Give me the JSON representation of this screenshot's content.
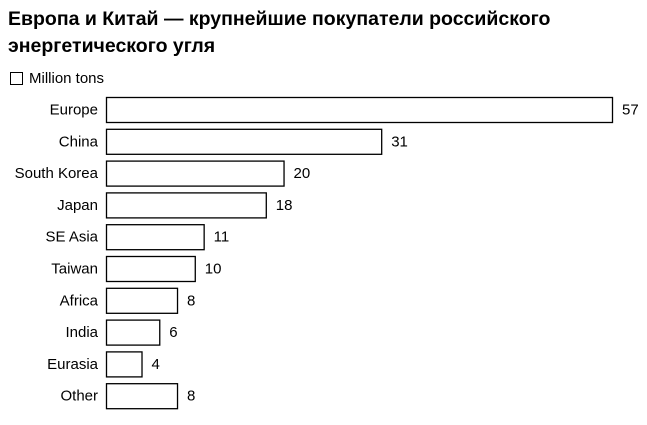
{
  "chart_data": {
    "type": "bar",
    "orientation": "horizontal",
    "title": "Европа и Китай — крупнейшие покупатели российского энергетического угля",
    "legend": "Million tons",
    "categories": [
      "Europe",
      "China",
      "South Korea",
      "Japan",
      "SE Asia",
      "Taiwan",
      "Africa",
      "India",
      "Eurasia",
      "Other"
    ],
    "values": [
      57,
      31,
      20,
      18,
      11,
      10,
      8,
      6,
      4,
      8
    ],
    "xlim": [
      0,
      57
    ],
    "grid": false,
    "bar_fill": "#ffffff",
    "bar_stroke": "#000000"
  }
}
